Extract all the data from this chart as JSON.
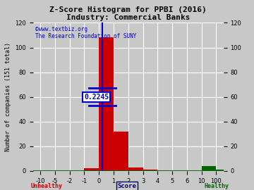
{
  "title": "Z-Score Histogram for PPBI (2016)",
  "subtitle": "Industry: Commercial Banks",
  "xlabel_left": "Unhealthy",
  "xlabel_center": "Score",
  "xlabel_right": "Healthy",
  "ylabel": "Number of companies (151 total)",
  "watermark_line1": "©www.textbiz.org",
  "watermark_line2": "The Research Foundation of SUNY",
  "ppbi_value": 0.2245,
  "ppbi_label": "0.2245",
  "ylim": [
    0,
    120
  ],
  "yticks": [
    0,
    20,
    40,
    60,
    80,
    100,
    120
  ],
  "tick_labels": [
    "-10",
    "-5",
    "-2",
    "-1",
    "0",
    "1",
    "2",
    "3",
    "4",
    "5",
    "6",
    "10",
    "100"
  ],
  "tick_indices": [
    0,
    1,
    2,
    3,
    4,
    5,
    6,
    7,
    8,
    9,
    10,
    11,
    12
  ],
  "real_values": [
    -10,
    -5,
    -2,
    -1,
    0,
    1,
    2,
    3,
    4,
    5,
    6,
    10,
    100
  ],
  "bar_heights": [
    0,
    0,
    0,
    2,
    108,
    32,
    3,
    1,
    0,
    0,
    0,
    4,
    1
  ],
  "bar_color_red": "#cc0000",
  "bar_color_green": "#006600",
  "background_color": "#c8c8c8",
  "grid_color": "#ffffff",
  "title_color": "#000000",
  "watermark_color": "#0000cc",
  "unhealthy_color": "#cc0000",
  "healthy_color": "#006600",
  "score_color": "#000066",
  "indicator_color": "#0000cc",
  "annotation_bg": "#ffffff",
  "annotation_border": "#0000cc",
  "bottom_line_color": "#006600",
  "title_fontsize": 8,
  "axis_fontsize": 6,
  "tick_fontsize": 6,
  "watermark_fontsize": 5.5
}
